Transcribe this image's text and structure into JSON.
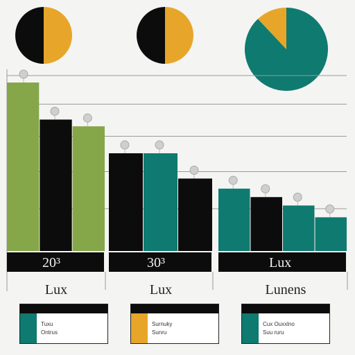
{
  "colors": {
    "green": "#86a64a",
    "black": "#0c0c0c",
    "teal": "#0f7a70",
    "orange": "#e7a62a",
    "grid": "#9a9a9a",
    "marker": "#cfcfcf"
  },
  "chart_data": [
    {
      "type": "pie",
      "slices": [
        {
          "color": "black",
          "value": 50
        },
        {
          "color": "orange",
          "value": 50
        }
      ]
    },
    {
      "type": "pie",
      "slices": [
        {
          "color": "black",
          "value": 50
        },
        {
          "color": "orange",
          "value": 50
        }
      ]
    },
    {
      "type": "pie",
      "slices": [
        {
          "color": "teal",
          "value": 88
        },
        {
          "color": "orange",
          "value": 12
        }
      ]
    },
    {
      "type": "bar",
      "title": "",
      "xlabel": "",
      "ylabel": "",
      "ylim": [
        0,
        100
      ],
      "grid": true,
      "gridlines": [
        100,
        83,
        64,
        43,
        21
      ],
      "groups": [
        {
          "category": "Lux",
          "band_label": "20³",
          "bars": [
            {
              "color": "green",
              "value": 100
            },
            {
              "color": "black",
              "value": 78
            },
            {
              "color": "green",
              "value": 74
            }
          ]
        },
        {
          "category": "Lux",
          "band_label": "30³",
          "bars": [
            {
              "color": "black",
              "value": 58
            },
            {
              "color": "teal",
              "value": 58
            },
            {
              "color": "black",
              "value": 43
            }
          ]
        },
        {
          "category": "Lunens",
          "band_label": "Lux",
          "bars": [
            {
              "color": "teal",
              "value": 37
            },
            {
              "color": "black",
              "value": 32
            },
            {
              "color": "teal",
              "value": 27
            },
            {
              "color": "teal",
              "value": 20
            }
          ]
        }
      ]
    }
  ],
  "legend": [
    {
      "color": "teal",
      "line1": "Tuxu",
      "line2": "Ontrus"
    },
    {
      "color": "orange",
      "line1": "Surnuky",
      "line2": "Sunru"
    },
    {
      "color": "teal",
      "line1": "Cux Ouxxlno",
      "line2": "Suu ruru"
    }
  ]
}
